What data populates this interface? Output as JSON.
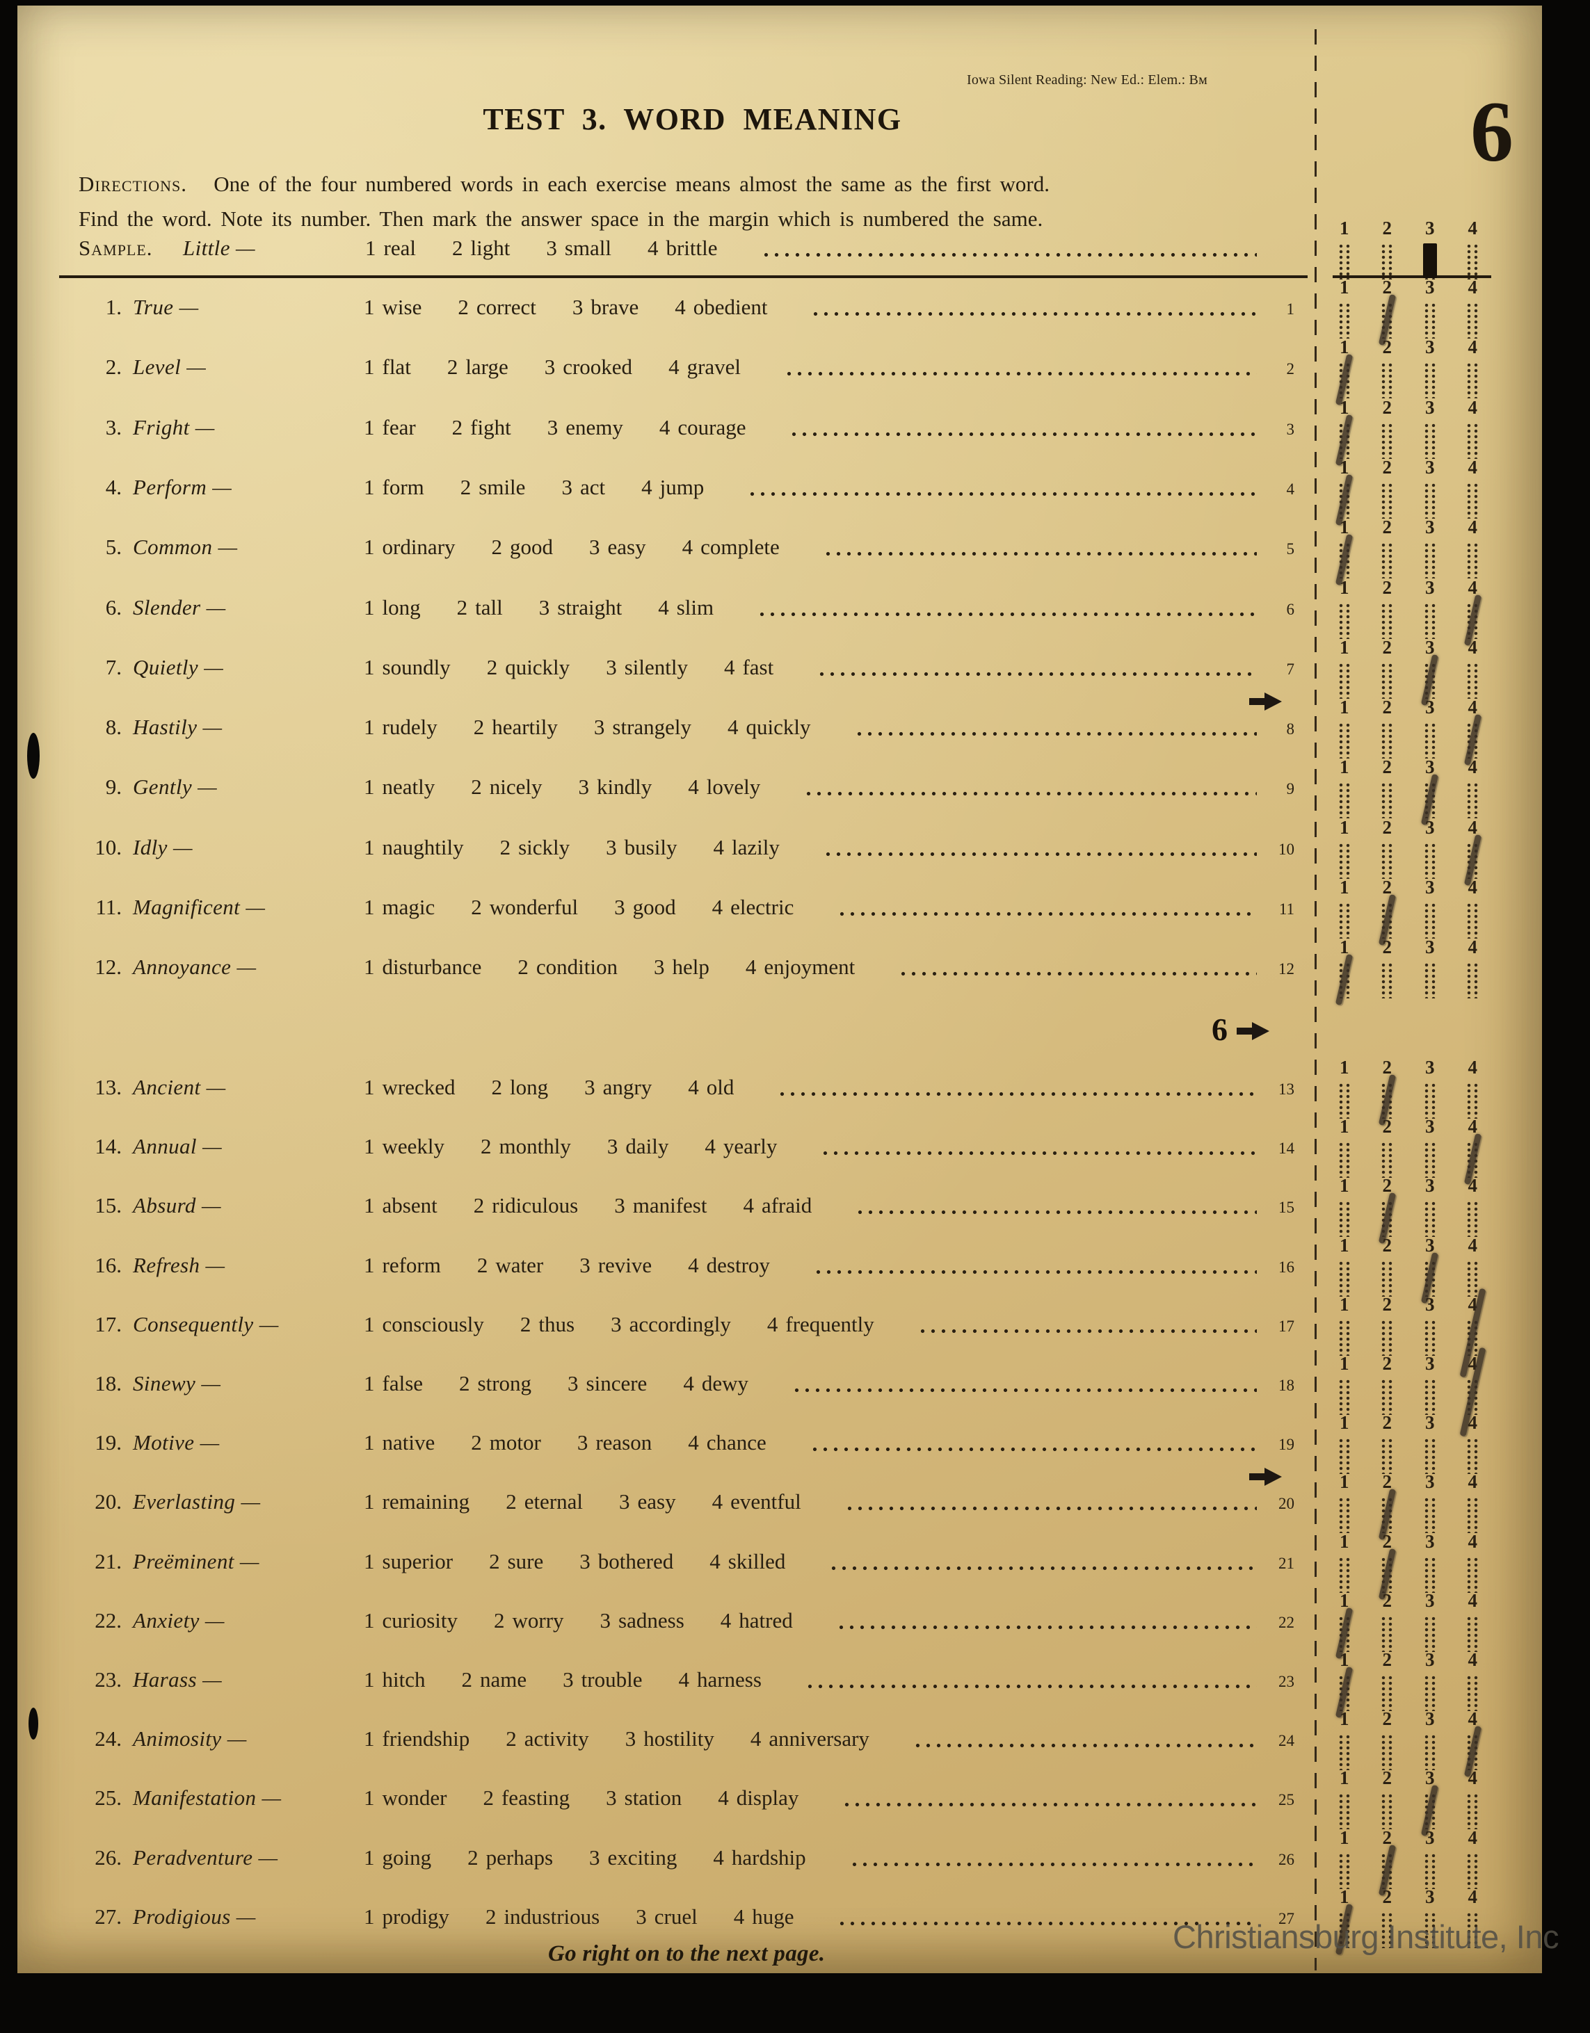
{
  "page": {
    "doc_ref": "Iowa Silent Reading: New Ed.: Elem.: Bм",
    "title": "TEST 3. WORD MEANING",
    "page_number": "6",
    "section_marker": "6",
    "footer_note": "Go right on to the next page.",
    "watermark": "Christiansburg Institute, Inc"
  },
  "directions": {
    "label": "Directions.",
    "line1": "One of the four numbered words in each exercise means almost the same as the first word.",
    "line2": "Find the word.   Note its number.   Then mark the answer space in the margin which is numbered the same."
  },
  "answer_column": {
    "column_labels": [
      "1",
      "2",
      "3",
      "4"
    ]
  },
  "sample": {
    "label": "Sample.",
    "word": "Little",
    "options": [
      "real",
      "light",
      "small",
      "brittle"
    ],
    "marked": 3,
    "mark_style": "solid"
  },
  "questions": [
    {
      "num": 1,
      "word": "True",
      "options": [
        "wise",
        "correct",
        "brave",
        "obedient"
      ],
      "marked": 2
    },
    {
      "num": 2,
      "word": "Level",
      "options": [
        "flat",
        "large",
        "crooked",
        "gravel"
      ],
      "marked": 1
    },
    {
      "num": 3,
      "word": "Fright",
      "options": [
        "fear",
        "fight",
        "enemy",
        "courage"
      ],
      "marked": 1
    },
    {
      "num": 4,
      "word": "Perform",
      "options": [
        "form",
        "smile",
        "act",
        "jump"
      ],
      "marked": 1
    },
    {
      "num": 5,
      "word": "Common",
      "options": [
        "ordinary",
        "good",
        "easy",
        "complete"
      ],
      "marked": 1
    },
    {
      "num": 6,
      "word": "Slender",
      "options": [
        "long",
        "tall",
        "straight",
        "slim"
      ],
      "marked": 4
    },
    {
      "num": 7,
      "word": "Quietly",
      "options": [
        "soundly",
        "quickly",
        "silently",
        "fast"
      ],
      "marked": 3
    },
    {
      "num": 8,
      "word": "Hastily",
      "options": [
        "rudely",
        "heartily",
        "strangely",
        "quickly"
      ],
      "marked": 4
    },
    {
      "num": 9,
      "word": "Gently",
      "options": [
        "neatly",
        "nicely",
        "kindly",
        "lovely"
      ],
      "marked": 3
    },
    {
      "num": 10,
      "word": "Idly",
      "options": [
        "naughtily",
        "sickly",
        "busily",
        "lazily"
      ],
      "marked": 4
    },
    {
      "num": 11,
      "word": "Magnificent",
      "options": [
        "magic",
        "wonderful",
        "good",
        "electric"
      ],
      "marked": 2
    },
    {
      "num": 12,
      "word": "Annoyance",
      "options": [
        "disturbance",
        "condition",
        "help",
        "enjoyment"
      ],
      "marked": 1
    },
    {
      "num": 13,
      "word": "Ancient",
      "options": [
        "wrecked",
        "long",
        "angry",
        "old"
      ],
      "marked": 2
    },
    {
      "num": 14,
      "word": "Annual",
      "options": [
        "weekly",
        "monthly",
        "daily",
        "yearly"
      ],
      "marked": 4
    },
    {
      "num": 15,
      "word": "Absurd",
      "options": [
        "absent",
        "ridiculous",
        "manifest",
        "afraid"
      ],
      "marked": 2
    },
    {
      "num": 16,
      "word": "Refresh",
      "options": [
        "reform",
        "water",
        "revive",
        "destroy"
      ],
      "marked": 3
    },
    {
      "num": 17,
      "word": "Consequently",
      "options": [
        "consciously",
        "thus",
        "accordingly",
        "frequently"
      ],
      "marked": 4
    },
    {
      "num": 18,
      "word": "Sinewy",
      "options": [
        "false",
        "strong",
        "sincere",
        "dewy"
      ],
      "marked": 4
    },
    {
      "num": 19,
      "word": "Motive",
      "options": [
        "native",
        "motor",
        "reason",
        "chance"
      ],
      "marked": null
    },
    {
      "num": 20,
      "word": "Everlasting",
      "options": [
        "remaining",
        "eternal",
        "easy",
        "eventful"
      ],
      "marked": 2
    },
    {
      "num": 21,
      "word": "Preëminent",
      "options": [
        "superior",
        "sure",
        "bothered",
        "skilled"
      ],
      "marked": 2
    },
    {
      "num": 22,
      "word": "Anxiety",
      "options": [
        "curiosity",
        "worry",
        "sadness",
        "hatred"
      ],
      "marked": 1
    },
    {
      "num": 23,
      "word": "Harass",
      "options": [
        "hitch",
        "name",
        "trouble",
        "harness"
      ],
      "marked": 1
    },
    {
      "num": 24,
      "word": "Animosity",
      "options": [
        "friendship",
        "activity",
        "hostility",
        "anniversary"
      ],
      "marked": 4
    },
    {
      "num": 25,
      "word": "Manifestation",
      "options": [
        "wonder",
        "feasting",
        "station",
        "display"
      ],
      "marked": 3
    },
    {
      "num": 26,
      "word": "Peradventure",
      "options": [
        "going",
        "perhaps",
        "exciting",
        "hardship"
      ],
      "marked": 2
    },
    {
      "num": 27,
      "word": "Prodigious",
      "options": [
        "prodigy",
        "industrious",
        "cruel",
        "huge"
      ],
      "marked": 1
    }
  ],
  "markers": {
    "arrows_after_questions": [
      7,
      19
    ],
    "section_marker_after_question": 12,
    "long_pencil_marks": [
      17,
      18
    ]
  }
}
